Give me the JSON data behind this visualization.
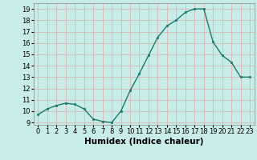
{
  "x": [
    0,
    1,
    2,
    3,
    4,
    5,
    6,
    7,
    8,
    9,
    10,
    11,
    12,
    13,
    14,
    15,
    16,
    17,
    18,
    19,
    20,
    21,
    22,
    23
  ],
  "y": [
    9.7,
    10.2,
    10.5,
    10.7,
    10.6,
    10.2,
    9.3,
    9.1,
    9.0,
    10.0,
    11.8,
    13.3,
    14.9,
    16.5,
    17.5,
    18.0,
    18.7,
    19.0,
    19.0,
    16.1,
    14.9,
    14.3,
    13.0,
    13.0
  ],
  "line_color": "#1a7a6e",
  "marker": "s",
  "markersize": 2.0,
  "linewidth": 1.0,
  "xlabel": "Humidex (Indice chaleur)",
  "xlabel_fontsize": 7.5,
  "xlabel_fontweight": "bold",
  "bg_color": "#c8ece8",
  "grid_color": "#d8b8b8",
  "xlim": [
    -0.5,
    23.5
  ],
  "ylim": [
    8.8,
    19.5
  ],
  "yticks": [
    9,
    10,
    11,
    12,
    13,
    14,
    15,
    16,
    17,
    18,
    19
  ],
  "xtick_labels": [
    "0",
    "1",
    "2",
    "3",
    "4",
    "5",
    "6",
    "7",
    "8",
    "9",
    "10",
    "11",
    "12",
    "13",
    "14",
    "15",
    "16",
    "17",
    "18",
    "19",
    "20",
    "21",
    "22",
    "23"
  ],
  "tick_fontsize": 6.0,
  "spine_color": "#888888"
}
